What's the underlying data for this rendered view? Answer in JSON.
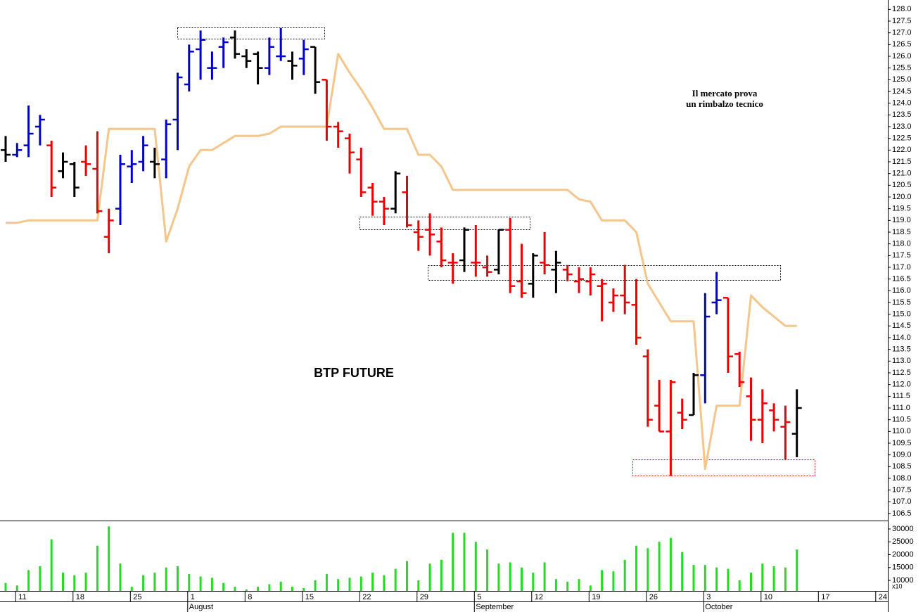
{
  "chart_data": {
    "type": "ohlc",
    "title": "BTP FUTURE",
    "annotation": [
      "Il mercato prova",
      "un rimbalzo tecnico"
    ],
    "categories": [
      null,
      "11",
      null,
      null,
      null,
      null,
      "18",
      null,
      null,
      null,
      null,
      "25",
      null,
      null,
      null,
      null,
      "1",
      null,
      null,
      null,
      null,
      "8",
      null,
      null,
      null,
      null,
      "15",
      null,
      null,
      null,
      null,
      "22",
      null,
      null,
      null,
      null,
      "29",
      null,
      null,
      null,
      null,
      "5",
      null,
      null,
      null,
      null,
      "12",
      null,
      null,
      null,
      null,
      "19",
      null,
      null,
      null,
      null,
      "26",
      null,
      null,
      null,
      null,
      "3",
      null,
      null,
      null,
      null,
      "10",
      null,
      null,
      null,
      null,
      "17",
      null,
      null,
      null,
      null,
      "24",
      null
    ],
    "months": [
      {
        "label": "August",
        "category": 16
      },
      {
        "label": "September",
        "category": 41
      },
      {
        "label": "October",
        "category": 61
      }
    ],
    "open": [
      122.0,
      121.8,
      122.2,
      123.0,
      122.2,
      121.1,
      121.4,
      121.5,
      121.2,
      118.3,
      119.5,
      121.3,
      121.5,
      121.5,
      121.6,
      123.3,
      124.8,
      126.3,
      125.5,
      126.4,
      126.8,
      126.0,
      126.1,
      125.5,
      126.0,
      125.8,
      125.9,
      126.4,
      125.0,
      123.0,
      122.5,
      121.6,
      120.4,
      119.8,
      119.5,
      120.2,
      118.5,
      118.6,
      118.1,
      117.2,
      117.3,
      117.2,
      117.0,
      116.9,
      118.6,
      116.4,
      116.3,
      117.2,
      116.9,
      116.9,
      116.4,
      116.4,
      116.2,
      115.5,
      115.8,
      115.4,
      113.2,
      111.1,
      110.0,
      110.8,
      110.7,
      112.4,
      115.5,
      115.7,
      113.3,
      111.5,
      110.5,
      110.9,
      110.2,
      109.9,
      null,
      null,
      null,
      null,
      null,
      null,
      null,
      null
    ],
    "high": [
      122.6,
      122.3,
      123.9,
      123.5,
      122.4,
      121.9,
      121.5,
      122.2,
      122.8,
      119.5,
      121.8,
      122.0,
      122.6,
      122.1,
      123.3,
      125.3,
      126.5,
      127.1,
      126.2,
      126.8,
      127.1,
      126.3,
      126.2,
      126.8,
      127.2,
      126.2,
      126.7,
      126.4,
      125.0,
      123.2,
      122.7,
      122.1,
      120.6,
      120.0,
      121.1,
      120.9,
      119.0,
      119.3,
      118.7,
      117.6,
      118.7,
      118.8,
      117.5,
      118.6,
      119.1,
      118.0,
      117.6,
      118.5,
      117.7,
      117.1,
      117.0,
      117.0,
      116.5,
      116.1,
      117.1,
      116.5,
      113.5,
      112.2,
      112.2,
      111.4,
      112.5,
      115.9,
      116.8,
      115.7,
      113.4,
      112.3,
      111.8,
      111.2,
      111.1,
      111.8,
      null,
      null,
      null,
      null,
      null,
      null,
      null,
      null
    ],
    "low": [
      121.5,
      121.7,
      121.7,
      122.2,
      120.0,
      120.8,
      120.0,
      120.9,
      119.3,
      117.6,
      118.8,
      120.6,
      121.1,
      120.8,
      120.8,
      122.0,
      124.5,
      125.0,
      125.0,
      125.5,
      125.9,
      125.5,
      124.8,
      125.2,
      125.8,
      125.0,
      125.2,
      124.4,
      122.4,
      122.1,
      121.0,
      120.0,
      119.2,
      118.8,
      119.3,
      118.7,
      117.7,
      117.5,
      117.0,
      116.3,
      116.8,
      116.6,
      116.6,
      116.7,
      115.9,
      115.7,
      115.7,
      116.7,
      115.9,
      116.4,
      115.9,
      115.8,
      114.7,
      115.1,
      115.0,
      113.7,
      110.2,
      110.0,
      108.1,
      110.1,
      110.7,
      111.2,
      115.0,
      112.5,
      111.9,
      109.6,
      109.5,
      110.0,
      108.8,
      108.9,
      null,
      null,
      null,
      null,
      null,
      null,
      null,
      null
    ],
    "close": [
      121.8,
      122.0,
      122.7,
      123.3,
      120.4,
      121.5,
      120.4,
      121.4,
      119.4,
      119.0,
      121.4,
      121.4,
      122.2,
      121.4,
      123.1,
      125.1,
      126.2,
      126.7,
      125.5,
      126.6,
      126.1,
      125.8,
      125.5,
      126.4,
      126.0,
      125.6,
      126.3,
      124.9,
      123.0,
      122.8,
      121.9,
      120.2,
      119.8,
      119.5,
      121.0,
      118.8,
      118.3,
      118.4,
      117.3,
      117.2,
      118.6,
      117.2,
      116.8,
      118.6,
      116.2,
      115.9,
      117.5,
      117.1,
      117.2,
      116.7,
      116.5,
      116.7,
      116.3,
      115.8,
      115.5,
      114.0,
      110.5,
      110.0,
      112.1,
      110.5,
      112.4,
      114.9,
      115.6,
      113.2,
      112.1,
      110.5,
      111.2,
      110.5,
      110.4,
      111.0,
      null,
      null,
      null,
      null,
      null,
      null,
      null,
      null
    ],
    "bar_colors": [
      "#000000",
      "#0000cc",
      "#0000cc",
      "#0000cc",
      "#ee0000",
      "#000000",
      "#000000",
      "#ee0000",
      "#ee0000",
      "#ee0000",
      "#0000cc",
      "#0000cc",
      "#0000cc",
      "#000000",
      "#0000cc",
      "#0000cc",
      "#0000cc",
      "#0000cc",
      "#0000cc",
      "#0000cc",
      "#000000",
      "#000000",
      "#000000",
      "#0000cc",
      "#0000cc",
      "#000000",
      "#0000cc",
      "#000000",
      "#ee0000",
      "#ee0000",
      "#ee0000",
      "#ee0000",
      "#ee0000",
      "#ee0000",
      "#000000",
      "#ee0000",
      "#ee0000",
      "#ee0000",
      "#ee0000",
      "#ee0000",
      "#000000",
      "#ee0000",
      "#ee0000",
      "#000000",
      "#ee0000",
      "#ee0000",
      "#000000",
      "#ee0000",
      "#000000",
      "#ee0000",
      "#ee0000",
      "#ee0000",
      "#ee0000",
      "#ee0000",
      "#ee0000",
      "#ee0000",
      "#ee0000",
      "#ee0000",
      "#ee0000",
      "#ee0000",
      "#000000",
      "#0000cc",
      "#0000cc",
      "#ee0000",
      "#ee0000",
      "#ee0000",
      "#ee0000",
      "#ee0000",
      "#ee0000",
      "#000000",
      null,
      null,
      null,
      null,
      null,
      null,
      null,
      null
    ],
    "line": {
      "color": "#f5c58a",
      "values": [
        118.9,
        118.9,
        119.0,
        119.0,
        119.0,
        119.0,
        119.0,
        119.0,
        119.0,
        122.9,
        122.9,
        122.9,
        122.9,
        122.9,
        118.1,
        119.5,
        121.3,
        122.0,
        122.0,
        122.3,
        122.6,
        122.6,
        122.6,
        122.7,
        123.0,
        123.0,
        123.0,
        123.0,
        123.0,
        126.1,
        125.3,
        124.6,
        123.8,
        122.9,
        122.9,
        122.9,
        121.8,
        121.8,
        121.3,
        120.3,
        120.3,
        120.3,
        120.3,
        120.3,
        120.3,
        120.3,
        120.3,
        120.3,
        120.3,
        120.3,
        119.9,
        119.8,
        119.0,
        119.0,
        119.0,
        118.5,
        116.3,
        115.5,
        114.7,
        114.7,
        114.7,
        108.4,
        111.1,
        111.1,
        111.1,
        115.8,
        115.3,
        114.9,
        114.5,
        114.5,
        null,
        null,
        null,
        null,
        null,
        null,
        null,
        null
      ]
    },
    "ylim": [
      106.2,
      128.4
    ],
    "yticks": [
      106.5,
      {
        "value": 107,
        "label": "107.0"
      },
      107.5,
      {
        "value": 108,
        "label": "108.0"
      },
      108.5,
      {
        "value": 109,
        "label": "109.0"
      },
      109.5,
      {
        "value": 110,
        "label": "110.0"
      },
      110.5,
      {
        "value": 111,
        "label": "111.0"
      },
      111.5,
      {
        "value": 112,
        "label": "112.0"
      },
      112.5,
      {
        "value": 113,
        "label": "113.0"
      },
      113.5,
      {
        "value": 114,
        "label": "114.0"
      },
      114.5,
      {
        "value": 115,
        "label": "115.0"
      },
      115.5,
      {
        "value": 116,
        "label": "116.0"
      },
      116.5,
      {
        "value": 117,
        "label": "117.0"
      },
      117.5,
      {
        "value": 118,
        "label": "118.0"
      },
      118.5,
      {
        "value": 119,
        "label": "119.0"
      },
      119.5,
      {
        "value": 120,
        "label": "120.0"
      },
      120.5,
      {
        "value": 121,
        "label": "121.0"
      },
      121.5,
      {
        "value": 122,
        "label": "122.0"
      },
      122.5,
      {
        "value": 123,
        "label": "123.0"
      },
      123.5,
      {
        "value": 124,
        "label": "124.0"
      },
      124.5,
      {
        "value": 125,
        "label": "125.0"
      },
      125.5,
      {
        "value": 126,
        "label": "126.0"
      },
      126.5,
      {
        "value": 127,
        "label": "127.0"
      },
      127.5,
      {
        "value": 128,
        "label": "128.0"
      }
    ],
    "volume": {
      "color": "#22dd22",
      "scale_label": "x10",
      "values": [
        9000,
        8000,
        14000,
        15500,
        26000,
        13000,
        12000,
        13000,
        23500,
        31000,
        16500,
        7500,
        12000,
        13000,
        15000,
        15500,
        12500,
        11500,
        11000,
        9000,
        7500,
        6500,
        7500,
        8500,
        9500,
        7500,
        7000,
        10000,
        12500,
        10500,
        11000,
        11500,
        13000,
        12000,
        14500,
        17500,
        10000,
        16500,
        18000,
        28500,
        28500,
        25000,
        22000,
        16500,
        17000,
        15000,
        13000,
        17000,
        10500,
        9500,
        10500,
        8000,
        14000,
        13500,
        18000,
        23500,
        22500,
        25000,
        26500,
        21000,
        16000,
        16000,
        15000,
        14500,
        10000,
        13000,
        16500,
        15500,
        15000,
        22000,
        null,
        null,
        null,
        null,
        null,
        null,
        null,
        null
      ],
      "ylim": [
        5900,
        33000
      ],
      "yticks": [
        10000,
        15000,
        20000,
        25000,
        30000
      ]
    }
  }
}
